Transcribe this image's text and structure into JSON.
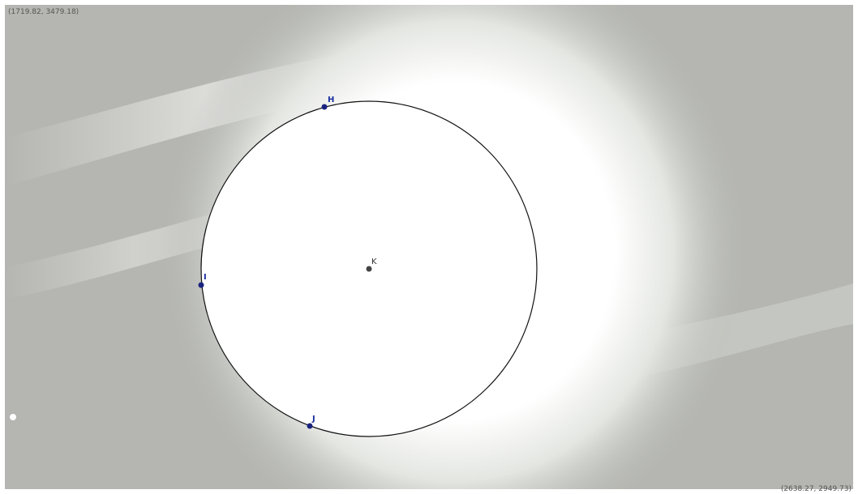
{
  "view": {
    "corner_top_left": "(1719.82, 3479.18)",
    "corner_bottom_right": "(2638.27, 2949.73)"
  },
  "points": [
    {
      "label": "H"
    },
    {
      "label": "I"
    },
    {
      "label": "J"
    },
    {
      "label": "K"
    }
  ]
}
